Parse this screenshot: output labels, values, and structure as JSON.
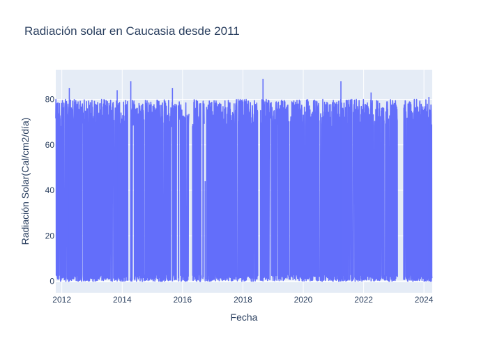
{
  "chart_data": {
    "type": "line",
    "title": "Radiación solar en Caucasia desde 2011",
    "xlabel": "Fecha",
    "ylabel": "Radiación Solar(Cal/cm2/día)",
    "xlim": [
      "2011-10-20",
      "2024-04-10"
    ],
    "ylim": [
      -5,
      93
    ],
    "x_ticks": [
      "2012",
      "2014",
      "2016",
      "2018",
      "2020",
      "2022",
      "2024"
    ],
    "y_ticks": [
      "0",
      "20",
      "40",
      "60",
      "80"
    ],
    "grid": true,
    "legend": "none",
    "series": [
      {
        "color": "#636efa",
        "segments": [
          {
            "start": "2011-10-20",
            "end": "2014-03-10"
          },
          {
            "start": "2014-04-10",
            "end": "2015-10-20"
          },
          {
            "start": "2015-11-10",
            "end": "2016-03-20"
          },
          {
            "start": "2016-05-01",
            "end": "2016-08-15"
          },
          {
            "start": "2016-09-01",
            "end": "2016-09-20"
          },
          {
            "start": "2016-10-15",
            "end": "2018-07-01"
          },
          {
            "start": "2018-08-01",
            "end": "2023-02-15"
          },
          {
            "start": "2023-05-01",
            "end": "2024-04-10"
          }
        ],
        "peaks": [
          {
            "x": "2012-04-01",
            "y": 85
          },
          {
            "x": "2013-11-01",
            "y": 84
          },
          {
            "x": "2014-04-15",
            "y": 88
          },
          {
            "x": "2015-09-01",
            "y": 85
          },
          {
            "x": "2016-10-01",
            "y": 44
          },
          {
            "x": "2018-09-01",
            "y": 89
          },
          {
            "x": "2021-04-01",
            "y": 88
          },
          {
            "x": "2022-04-01",
            "y": 83
          },
          {
            "x": "2024-03-01",
            "y": 81
          }
        ]
      }
    ]
  }
}
